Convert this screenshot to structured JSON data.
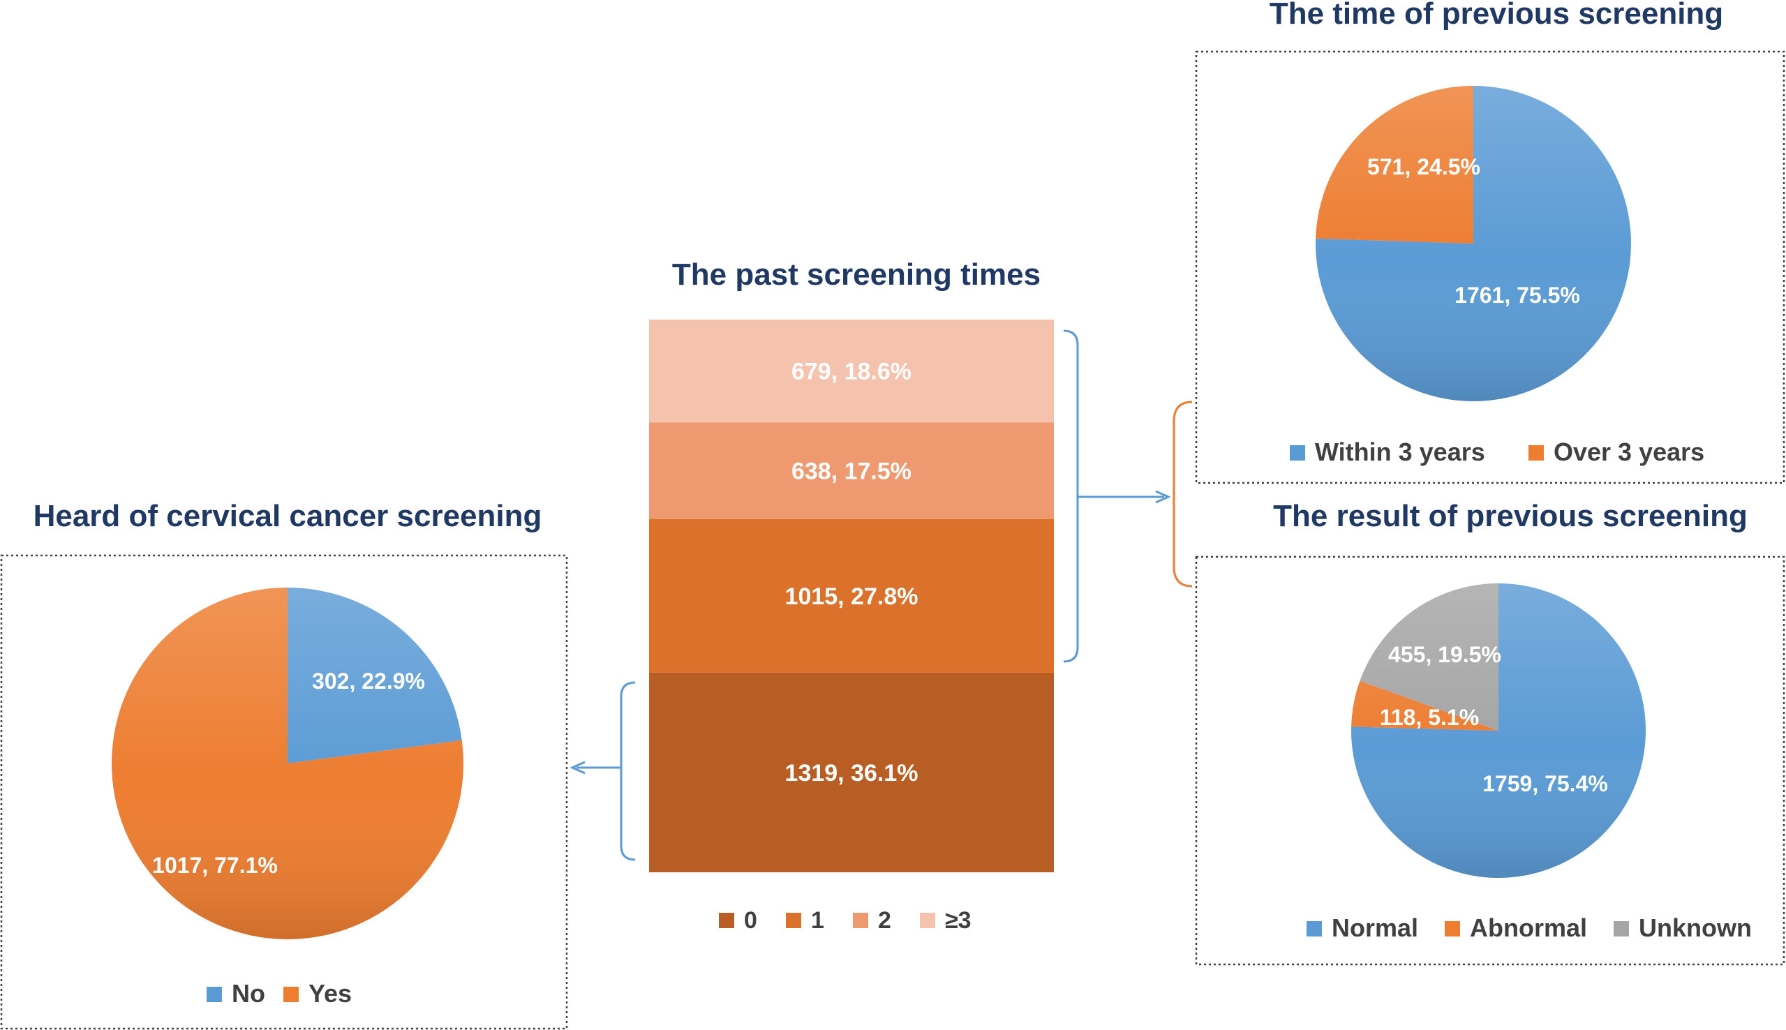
{
  "colors": {
    "blue": "#5b9bd5",
    "orange": "#ed7d31",
    "gray": "#a5a5a5",
    "bar_0": "#b85e24",
    "bar_1": "#dc712c",
    "bar_2": "#ee9970",
    "bar_3": "#f5c2ae",
    "title": "#1f3864",
    "legend_text": "#404040",
    "bracket_blue": "#5b9bd5",
    "bracket_orange": "#ed7d31"
  },
  "chart_data": [
    {
      "id": "past",
      "type": "bar",
      "stacked": true,
      "title": "The past screening times",
      "categories": [
        "0",
        "1",
        "2",
        "≥3"
      ],
      "series": [
        {
          "name": "0",
          "value": 1319,
          "label": "1319, 36.1%",
          "color": "#b85e24"
        },
        {
          "name": "1",
          "value": 1015,
          "label": "1015, 27.8%",
          "color": "#dc712c"
        },
        {
          "name": "2",
          "value": 638,
          "label": "638, 17.5%",
          "color": "#ee9970"
        },
        {
          "name": "≥3",
          "value": 679,
          "label": "679, 18.6%",
          "color": "#f5c2ae"
        }
      ],
      "legend": [
        "0",
        "1",
        "2",
        "≥3"
      ],
      "legend_position": "bottom"
    },
    {
      "id": "heard",
      "type": "pie",
      "title": "Heard of cervical cancer screening",
      "slices": [
        {
          "name": "No",
          "value": 302,
          "label": "302, 22.9%",
          "color": "#5b9bd5"
        },
        {
          "name": "Yes",
          "value": 1017,
          "label": "1017, 77.1%",
          "color": "#ed7d31"
        }
      ],
      "legend": [
        "No",
        "Yes"
      ],
      "legend_position": "bottom"
    },
    {
      "id": "time",
      "type": "pie",
      "title": "The time of previous screening",
      "slices": [
        {
          "name": "Within 3 years",
          "value": 1761,
          "label": "1761, 75.5%",
          "color": "#5b9bd5"
        },
        {
          "name": "Over 3 years",
          "value": 571,
          "label": "571, 24.5%",
          "color": "#ed7d31"
        }
      ],
      "legend": [
        "Within 3 years",
        "Over 3 years"
      ],
      "legend_position": "bottom"
    },
    {
      "id": "result",
      "type": "pie",
      "title": "The result of previous screening",
      "slices": [
        {
          "name": "Normal",
          "value": 1759,
          "label": "1759, 75.4%",
          "color": "#5b9bd5"
        },
        {
          "name": "Abnormal",
          "value": 118,
          "label": "118, 5.1%",
          "color": "#ed7d31"
        },
        {
          "name": "Unknown",
          "value": 455,
          "label": "455, 19.5%",
          "color": "#a5a5a5"
        }
      ],
      "legend": [
        "Normal",
        "Abnormal",
        "Unknown"
      ],
      "legend_position": "bottom"
    }
  ]
}
